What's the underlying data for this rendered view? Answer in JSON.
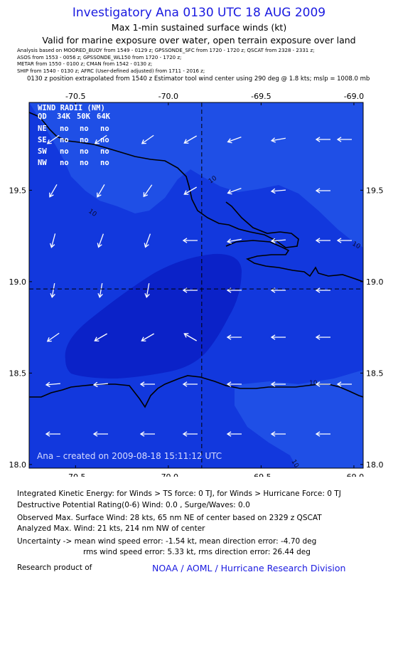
{
  "header": {
    "title": "Investigatory Ana 0130 UTC 18 AUG 2009",
    "subtitle": "Max 1-min sustained surface winds (kt)",
    "valid_note": "Valid for marine exposure over water, open terrain exposure over land"
  },
  "analysis_lines": [
    "Analysis based on  MOORED_BUOY from 1549 - 0129 z;  GPSSONDE_SFC from 1720 - 1720 z;  QSCAT from 2328 - 2331 z;",
    "ASOS from 1553 - 0056 z;  GPSSONDE_WL150 from 1720 - 1720 z;",
    "METAR from 1550 - 0100 z;  CMAN from 1542 - 0130 z;",
    "SHIP from 1540 - 0130 z;  AFRC  (User-defined adjusted)  from 1711 - 2016 z;"
  ],
  "position_note": "0130 z position extrapolated from 1540 z Estimator tool wind center using 290 deg @ 1.8 kts; mslp = 1008.0 mb",
  "map": {
    "x_ticks": [
      -70.5,
      -70.0,
      -69.5,
      -69.0
    ],
    "x_tick_labels": [
      "-70.5",
      "-70.0",
      "-69.5",
      "-69.0"
    ],
    "y_ticks": [
      19.5,
      19.0,
      18.5,
      18.0
    ],
    "y_tick_labels": [
      "19.5",
      "19.0",
      "18.5",
      "18.0"
    ],
    "lon_range": [
      -70.75,
      -68.95
    ],
    "lat_range": [
      17.98,
      19.98
    ],
    "center": {
      "lon": -69.82,
      "lat": 18.96
    },
    "colors": {
      "ocean_low": "#1f4fe6",
      "band_10_20": "#1238dd",
      "band_20_plus": "#0b22c8",
      "coast": "#000000",
      "arrow": "#ffffff"
    },
    "contour_labels": [
      "10",
      "10",
      "10",
      "10",
      "10"
    ],
    "created_note": "Ana – created on 2009-08-18 15:11:12 UTC",
    "wind_radii": {
      "title": "WIND RADII (NM)",
      "header": [
        "QD",
        "34K",
        "50K",
        "64K"
      ],
      "rows": [
        [
          "NE",
          "no",
          "no",
          "no"
        ],
        [
          "SE",
          "no",
          "no",
          "no"
        ],
        [
          "SW",
          "no",
          "no",
          "no"
        ],
        [
          "NW",
          "no",
          "no",
          "no"
        ]
      ]
    }
  },
  "footer": {
    "ike": "Integrated Kinetic Energy:  for Winds > TS force: 0 TJ,  for Winds > Hurricane Force: 0 TJ",
    "dpr": "Destructive Potential Rating(0-6)   Wind: 0.0 , Surge/Waves: 0.0",
    "observed": "Observed Max. Surface Wind: 28 kts, 65 nm NE of center based on 2329 z QSCAT",
    "analyzed": "Analyzed Max. Wind: 21 kts, 214 nm NW of center",
    "uncertainty1": "Uncertainty -> mean wind speed error:   -1.54 kt,   mean direction error:   -4.70 deg",
    "uncertainty2": "rms wind speed error: 5.33 kt,   rms direction error: 26.44 deg",
    "credit_label": "Research product of",
    "credit_link": "NOAA / AOML / Hurricane Research Division"
  }
}
